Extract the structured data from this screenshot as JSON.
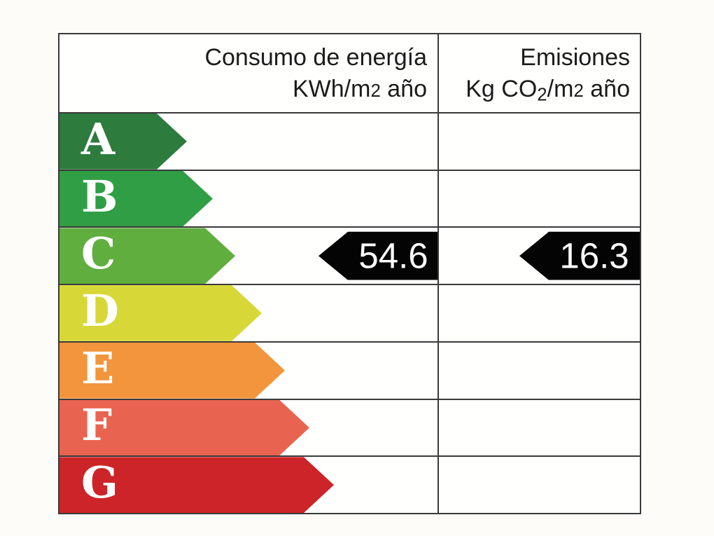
{
  "chart_data": {
    "type": "bar",
    "categories": [
      "A",
      "B",
      "C",
      "D",
      "E",
      "F",
      "G"
    ],
    "columns": [
      "Consumo de energía KWh/m2 año",
      "Emisiones Kg CO2/m2 año"
    ],
    "rated_class": "C",
    "values": {
      "consumo_kwh_m2_ano": 54.6,
      "emisiones_kg_co2_m2_ano": 16.3
    },
    "bar_colors": [
      "#2e7b3e",
      "#2f9e44",
      "#5fae3e",
      "#d7d838",
      "#f2953c",
      "#e96450",
      "#cc2428"
    ],
    "legend_position": "none",
    "grid": false
  },
  "page": {
    "background": "#fdfcf9"
  },
  "table": {
    "border_color": "#3a3a3a",
    "header": {
      "consumo_title": "Consumo de energía",
      "consumo_unit_pre": "KWh/m",
      "consumo_unit_exp": "2",
      "consumo_unit_post": " año",
      "emisiones_title": "Emisiones",
      "emisiones_unit_pre": "Kg CO",
      "emisiones_unit_sub": "2",
      "emisiones_unit_mid": "/m",
      "emisiones_unit_exp": "2",
      "emisiones_unit_post": " año"
    },
    "ratings": [
      {
        "letter": "A",
        "color": "#2e7b3e",
        "arrow_width": 182
      },
      {
        "letter": "B",
        "color": "#2f9e44",
        "arrow_width": 219
      },
      {
        "letter": "C",
        "color": "#5fae3e",
        "arrow_width": 251
      },
      {
        "letter": "D",
        "color": "#d7d838",
        "arrow_width": 289
      },
      {
        "letter": "E",
        "color": "#f2953c",
        "arrow_width": 322
      },
      {
        "letter": "F",
        "color": "#e96450",
        "arrow_width": 357
      },
      {
        "letter": "G",
        "color": "#cc2428",
        "arrow_width": 392
      }
    ],
    "values": {
      "rating_letter": "C",
      "consumo": "54.6",
      "emisiones": "16.3",
      "marker_color": "#040404",
      "consumo_arrow_width": 172,
      "emisiones_arrow_width": 172
    }
  }
}
